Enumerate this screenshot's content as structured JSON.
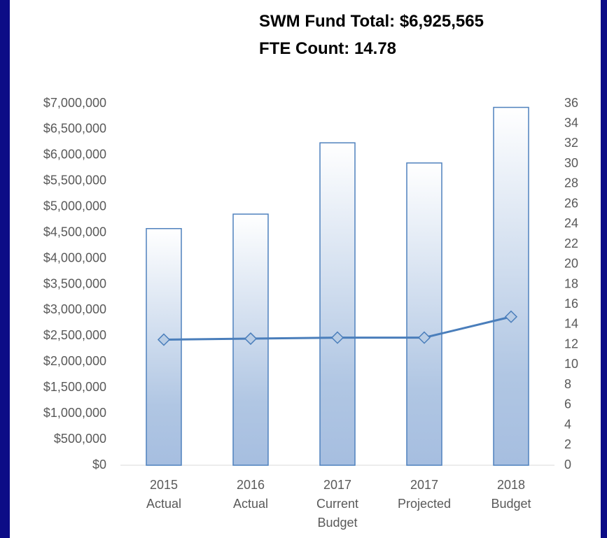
{
  "chart_data": {
    "type": "bar",
    "title": "SWM Fund Total: $6,925,565",
    "subtitle": "FTE Count: 14.78",
    "categories": [
      [
        "2015",
        "Actual"
      ],
      [
        "2016",
        "Actual"
      ],
      [
        "2017",
        "Current",
        "Budget"
      ],
      [
        "2017",
        "Projected"
      ],
      [
        "2018",
        "Budget"
      ]
    ],
    "series": [
      {
        "type": "bar",
        "color": "#4f81bd",
        "values": [
          4580000,
          4860000,
          6240000,
          5850000,
          6925565
        ]
      },
      {
        "type": "line",
        "axis": "y2",
        "color": "#4a7ebb",
        "values": [
          12.5,
          12.6,
          12.7,
          12.7,
          14.78
        ]
      }
    ],
    "ylim": [
      0,
      7000000
    ],
    "yticks": [
      {
        "value": 0,
        "label": "$0"
      },
      {
        "value": 500000,
        "label": "$500,000"
      },
      {
        "value": 1000000,
        "label": "$1,000,000"
      },
      {
        "value": 1500000,
        "label": "$1,500,000"
      },
      {
        "value": 2000000,
        "label": "$2,000,000"
      },
      {
        "value": 2500000,
        "label": "$2,500,000"
      },
      {
        "value": 3000000,
        "label": "$3,000,000"
      },
      {
        "value": 3500000,
        "label": "$3,500,000"
      },
      {
        "value": 4000000,
        "label": "$4,000,000"
      },
      {
        "value": 4500000,
        "label": "$4,500,000"
      },
      {
        "value": 5000000,
        "label": "$5,000,000"
      },
      {
        "value": 5500000,
        "label": "$5,500,000"
      },
      {
        "value": 6000000,
        "label": "$6,000,000"
      },
      {
        "value": 6500000,
        "label": "$6,500,000"
      },
      {
        "value": 7000000,
        "label": "$7,000,000"
      }
    ],
    "y2lim": [
      0,
      36
    ],
    "y2ticks": [
      0,
      2,
      4,
      6,
      8,
      10,
      12,
      14,
      16,
      18,
      20,
      22,
      24,
      26,
      28,
      30,
      32,
      34,
      36
    ],
    "grid": false
  }
}
